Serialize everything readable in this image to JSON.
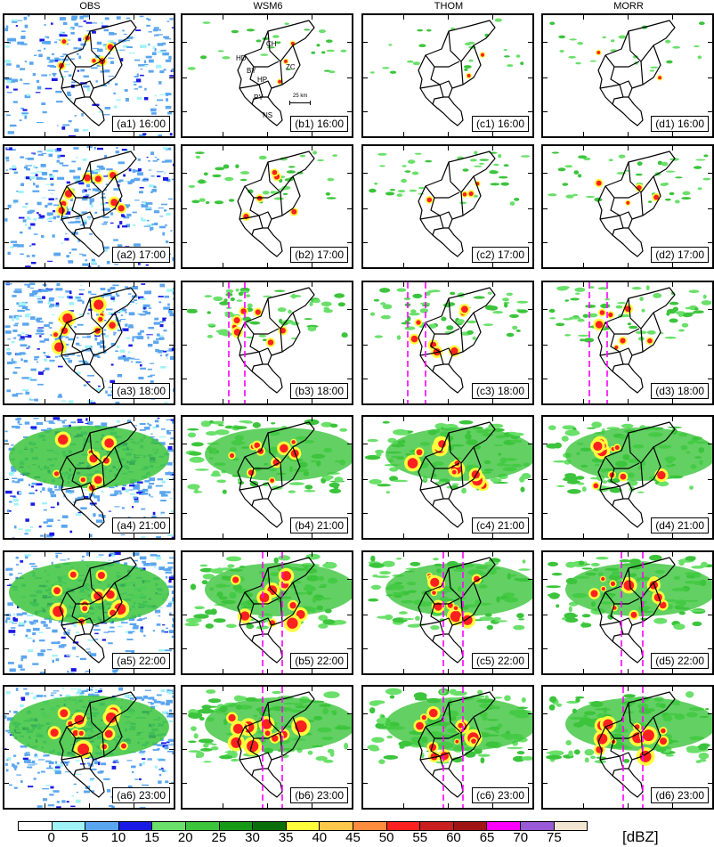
{
  "columns": [
    "OBS",
    "WSM6",
    "THOM",
    "MORR"
  ],
  "panels": [
    [
      "(a1) 16:00",
      "(b1) 16:00",
      "(c1) 16:00",
      "(d1) 16:00"
    ],
    [
      "(a2) 17:00",
      "(b2) 17:00",
      "(c2) 17:00",
      "(d2) 17:00"
    ],
    [
      "(a3) 18:00",
      "(b3) 18:00",
      "(c3) 18:00",
      "(d3) 18:00"
    ],
    [
      "(a4) 21:00",
      "(b4) 21:00",
      "(c4) 21:00",
      "(d4) 21:00"
    ],
    [
      "(a5) 22:00",
      "(b5) 22:00",
      "(c5) 22:00",
      "(d5) 22:00"
    ],
    [
      "(a6) 23:00",
      "(b6) 23:00",
      "(c6) 23:00",
      "(d6) 23:00"
    ]
  ],
  "district_labels": [
    "CH",
    "HD",
    "ZC",
    "BY",
    "HP",
    "PY",
    "NS"
  ],
  "scale_bar": "25 km",
  "colorbar": {
    "ticks": [
      "0",
      "5",
      "10",
      "15",
      "20",
      "25",
      "30",
      "35",
      "40",
      "45",
      "50",
      "55",
      "60",
      "65",
      "70",
      "75"
    ],
    "unit": "[dBZ]",
    "colors": [
      "#ffffff",
      "#9ff3f7",
      "#5aa6ef",
      "#1a1ae6",
      "#6ae06a",
      "#3cc43c",
      "#169a16",
      "#0a6e0a",
      "#ffff3c",
      "#ffc84a",
      "#ff8c3c",
      "#ff2020",
      "#c81e1e",
      "#a01414",
      "#ff00ff",
      "#9a59d6",
      "#f2e6d2"
    ]
  }
}
